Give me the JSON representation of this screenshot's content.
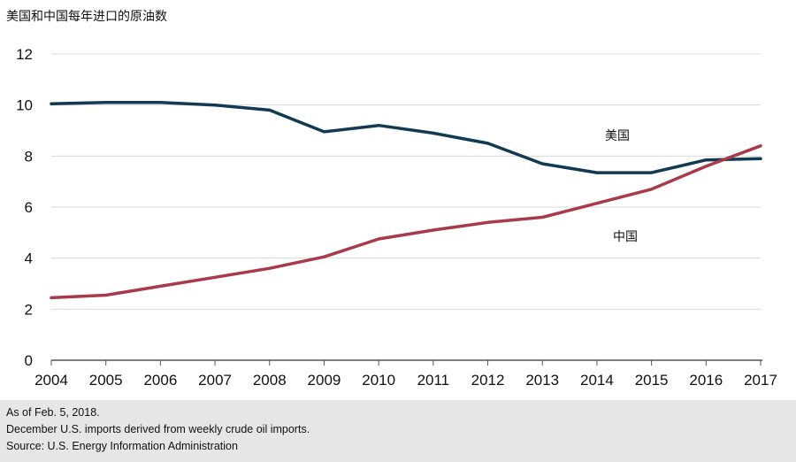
{
  "title": "美国和中国每年进口的原油数",
  "footnotes": {
    "as_of": "As of Feb. 5, 2018.",
    "note": "December U.S. imports derived from weekly crude oil imports.",
    "source": "Source: U.S. Energy Information Administration"
  },
  "colors": {
    "us": "#123a52",
    "china": "#a83a4c",
    "grid": "#d9d9d9",
    "axis": "#555555"
  },
  "chart_data": {
    "type": "line",
    "title": "美国和中国每年进口的原油数",
    "xlabel": "",
    "ylabel": "",
    "x": [
      2004,
      2005,
      2006,
      2007,
      2008,
      2009,
      2010,
      2011,
      2012,
      2013,
      2014,
      2015,
      2016,
      2017
    ],
    "xticks": [
      "2004",
      "2005",
      "2006",
      "2007",
      "2008",
      "2009",
      "2010",
      "2011",
      "2012",
      "2013",
      "2014",
      "2015",
      "2016",
      "2017"
    ],
    "ylim": [
      0,
      12
    ],
    "yticks": [
      "0",
      "2",
      "4",
      "6",
      "8",
      "10",
      "12"
    ],
    "grid": true,
    "legend": "inline labels",
    "series": [
      {
        "name": "美国",
        "values": [
          10.05,
          10.1,
          10.1,
          10.0,
          9.8,
          8.95,
          9.2,
          8.9,
          8.5,
          7.7,
          7.35,
          7.35,
          7.85,
          7.9
        ]
      },
      {
        "name": "中国",
        "values": [
          2.45,
          2.55,
          2.9,
          3.25,
          3.6,
          4.05,
          4.75,
          5.1,
          5.4,
          5.6,
          6.15,
          6.7,
          7.6,
          8.4
        ]
      }
    ]
  }
}
